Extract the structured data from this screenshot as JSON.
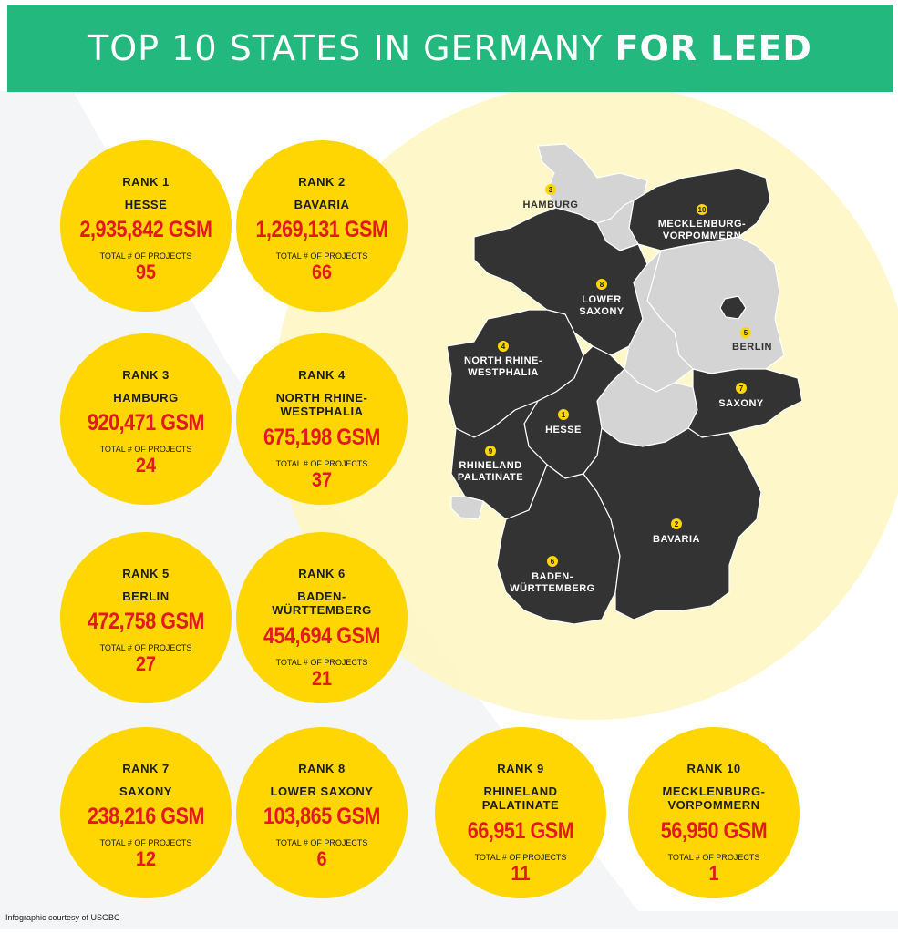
{
  "header": {
    "title_regular": "TOP 10 STATES IN GERMANY ",
    "title_bold": "FOR LEED"
  },
  "colors": {
    "header_green": "#22b87e",
    "circle_yellow": "#ffd602",
    "value_red": "#e3191c",
    "map_dark": "#333333",
    "map_light": "#d4d4d4"
  },
  "rankings": [
    {
      "rank": "RANK 1",
      "state": [
        "HESSE"
      ],
      "gsm": "2,935,842 GSM",
      "projects_label": "TOTAL # OF PROJECTS",
      "projects": "95"
    },
    {
      "rank": "RANK 2",
      "state": [
        "BAVARIA"
      ],
      "gsm": "1,269,131 GSM",
      "projects_label": "TOTAL # OF PROJECTS",
      "projects": "66"
    },
    {
      "rank": "RANK 3",
      "state": [
        "HAMBURG"
      ],
      "gsm": "920,471 GSM",
      "projects_label": "TOTAL # OF PROJECTS",
      "projects": "24"
    },
    {
      "rank": "RANK 4",
      "state": [
        "NORTH RHINE-",
        "WESTPHALIA"
      ],
      "gsm": "675,198 GSM",
      "projects_label": "TOTAL # OF PROJECTS",
      "projects": "37"
    },
    {
      "rank": "RANK 5",
      "state": [
        "BERLIN"
      ],
      "gsm": "472,758 GSM",
      "projects_label": "TOTAL # OF PROJECTS",
      "projects": "27"
    },
    {
      "rank": "RANK 6",
      "state": [
        "BADEN-",
        "WÜRTTEMBERG"
      ],
      "gsm": "454,694 GSM",
      "projects_label": "TOTAL # OF PROJECTS",
      "projects": "21"
    },
    {
      "rank": "RANK 7",
      "state": [
        "SAXONY"
      ],
      "gsm": "238,216 GSM",
      "projects_label": "TOTAL # OF PROJECTS",
      "projects": "12"
    },
    {
      "rank": "RANK 8",
      "state": [
        "LOWER SAXONY"
      ],
      "gsm": "103,865 GSM",
      "projects_label": "TOTAL # OF PROJECTS",
      "projects": "6"
    },
    {
      "rank": "RANK 9",
      "state": [
        "RHINELAND",
        "PALATINATE"
      ],
      "gsm": "66,951 GSM",
      "projects_label": "TOTAL # OF PROJECTS",
      "projects": "11"
    },
    {
      "rank": "RANK 10",
      "state": [
        "MECKLENBURG-",
        "VORPOMMERN"
      ],
      "gsm": "56,950 GSM",
      "projects_label": "TOTAL # OF PROJECTS",
      "projects": "1"
    }
  ],
  "map": {
    "labels": [
      {
        "num": "3",
        "lines": [
          "HAMBURG"
        ]
      },
      {
        "num": "10",
        "lines": [
          "MECKLENBURG-",
          "VORPOMMERN"
        ]
      },
      {
        "num": "8",
        "lines": [
          "LOWER",
          "SAXONY"
        ]
      },
      {
        "num": "5",
        "lines": [
          "BERLIN"
        ]
      },
      {
        "num": "4",
        "lines": [
          "NORTH RHINE-",
          "WESTPHALIA"
        ]
      },
      {
        "num": "1",
        "lines": [
          "HESSE"
        ]
      },
      {
        "num": "7",
        "lines": [
          "SAXONY"
        ]
      },
      {
        "num": "9",
        "lines": [
          "RHINELAND",
          "PALATINATE"
        ]
      },
      {
        "num": "2",
        "lines": [
          "BAVARIA"
        ]
      },
      {
        "num": "6",
        "lines": [
          "BADEN-",
          "WÜRTTEMBERG"
        ]
      }
    ]
  },
  "footer": {
    "credit": "Infographic courtesy of USGBC"
  }
}
